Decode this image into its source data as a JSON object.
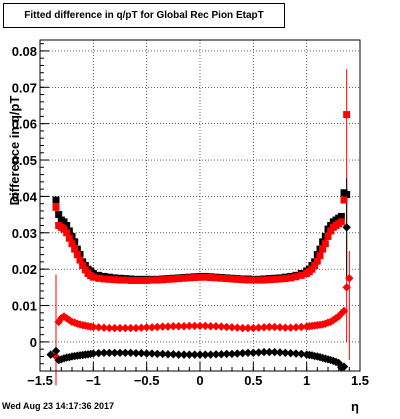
{
  "chart_data": {
    "type": "scatter",
    "title": "Fitted difference in q/pT for Global Rec Pion EtapT",
    "xlabel": "η",
    "ylabel": "Difference in q/pT",
    "xlim": [
      -1.5,
      1.5
    ],
    "ylim": [
      -0.008,
      0.083
    ],
    "grid": true,
    "legend": "none",
    "x_ticks": [
      "−1.5",
      "−1",
      "−0.5",
      "0",
      "0.5",
      "1",
      "1.5"
    ],
    "y_ticks": [
      "0",
      "0.01",
      "0.02",
      "0.03",
      "0.04",
      "0.05",
      "0.06",
      "0.07",
      "0.08"
    ],
    "series": [
      {
        "color": "#000000",
        "marker": "square",
        "points": [
          [
            -1.35,
            0.039
          ],
          [
            -1.325,
            0.035
          ],
          [
            -1.3,
            0.0335
          ],
          [
            -1.275,
            0.033
          ],
          [
            -1.25,
            0.032
          ],
          [
            -1.225,
            0.0305
          ],
          [
            -1.2,
            0.029
          ],
          [
            -1.175,
            0.0275
          ],
          [
            -1.15,
            0.0255
          ],
          [
            -1.125,
            0.024
          ],
          [
            -1.1,
            0.022
          ],
          [
            -1.075,
            0.021
          ],
          [
            -1.05,
            0.02
          ],
          [
            -1.025,
            0.0195
          ],
          [
            -1.0,
            0.0188
          ],
          [
            -0.95,
            0.0183
          ],
          [
            -0.9,
            0.018
          ],
          [
            -0.85,
            0.0178
          ],
          [
            -0.8,
            0.0176
          ],
          [
            -0.75,
            0.0175
          ],
          [
            -0.7,
            0.0174
          ],
          [
            -0.65,
            0.0173
          ],
          [
            -0.6,
            0.0172
          ],
          [
            -0.55,
            0.0172
          ],
          [
            -0.5,
            0.0172
          ],
          [
            -0.45,
            0.0172
          ],
          [
            -0.4,
            0.0172
          ],
          [
            -0.35,
            0.0173
          ],
          [
            -0.3,
            0.0174
          ],
          [
            -0.25,
            0.0175
          ],
          [
            -0.2,
            0.0176
          ],
          [
            -0.15,
            0.0177
          ],
          [
            -0.1,
            0.0178
          ],
          [
            -0.05,
            0.0179
          ],
          [
            0.0,
            0.018
          ],
          [
            0.05,
            0.018
          ],
          [
            0.1,
            0.0179
          ],
          [
            0.15,
            0.0178
          ],
          [
            0.2,
            0.0177
          ],
          [
            0.25,
            0.0176
          ],
          [
            0.3,
            0.0175
          ],
          [
            0.35,
            0.0174
          ],
          [
            0.4,
            0.0173
          ],
          [
            0.45,
            0.0173
          ],
          [
            0.5,
            0.0172
          ],
          [
            0.55,
            0.0172
          ],
          [
            0.6,
            0.0173
          ],
          [
            0.65,
            0.0174
          ],
          [
            0.7,
            0.0175
          ],
          [
            0.75,
            0.0176
          ],
          [
            0.8,
            0.0178
          ],
          [
            0.85,
            0.018
          ],
          [
            0.9,
            0.0183
          ],
          [
            0.95,
            0.0188
          ],
          [
            1.0,
            0.0195
          ],
          [
            1.025,
            0.02
          ],
          [
            1.05,
            0.021
          ],
          [
            1.075,
            0.022
          ],
          [
            1.1,
            0.024
          ],
          [
            1.125,
            0.0255
          ],
          [
            1.15,
            0.0275
          ],
          [
            1.175,
            0.029
          ],
          [
            1.2,
            0.031
          ],
          [
            1.225,
            0.032
          ],
          [
            1.25,
            0.033
          ],
          [
            1.275,
            0.0335
          ],
          [
            1.3,
            0.034
          ],
          [
            1.325,
            0.0345
          ],
          [
            1.35,
            0.041
          ],
          [
            1.375,
            0.0405
          ]
        ]
      },
      {
        "color": "#ff0000",
        "marker": "square",
        "points": [
          [
            -1.35,
            0.037
          ],
          [
            -1.325,
            0.032
          ],
          [
            -1.3,
            0.0315
          ],
          [
            -1.275,
            0.031
          ],
          [
            -1.25,
            0.03
          ],
          [
            -1.225,
            0.0285
          ],
          [
            -1.2,
            0.027
          ],
          [
            -1.175,
            0.0255
          ],
          [
            -1.15,
            0.024
          ],
          [
            -1.125,
            0.0225
          ],
          [
            -1.1,
            0.021
          ],
          [
            -1.075,
            0.0198
          ],
          [
            -1.05,
            0.0188
          ],
          [
            -1.025,
            0.0182
          ],
          [
            -1.0,
            0.0178
          ],
          [
            -0.95,
            0.0175
          ],
          [
            -0.9,
            0.0173
          ],
          [
            -0.85,
            0.0172
          ],
          [
            -0.8,
            0.0171
          ],
          [
            -0.75,
            0.017
          ],
          [
            -0.7,
            0.017
          ],
          [
            -0.65,
            0.0169
          ],
          [
            -0.6,
            0.0169
          ],
          [
            -0.55,
            0.0169
          ],
          [
            -0.5,
            0.0169
          ],
          [
            -0.45,
            0.017
          ],
          [
            -0.4,
            0.017
          ],
          [
            -0.35,
            0.0171
          ],
          [
            -0.3,
            0.0172
          ],
          [
            -0.25,
            0.0173
          ],
          [
            -0.2,
            0.0174
          ],
          [
            -0.15,
            0.0175
          ],
          [
            -0.1,
            0.0176
          ],
          [
            -0.05,
            0.0177
          ],
          [
            0.0,
            0.0178
          ],
          [
            0.05,
            0.0178
          ],
          [
            0.1,
            0.0177
          ],
          [
            0.15,
            0.0176
          ],
          [
            0.2,
            0.0175
          ],
          [
            0.25,
            0.0174
          ],
          [
            0.3,
            0.0173
          ],
          [
            0.35,
            0.0172
          ],
          [
            0.4,
            0.0171
          ],
          [
            0.45,
            0.017
          ],
          [
            0.5,
            0.017
          ],
          [
            0.55,
            0.017
          ],
          [
            0.6,
            0.017
          ],
          [
            0.65,
            0.0171
          ],
          [
            0.7,
            0.0172
          ],
          [
            0.75,
            0.0173
          ],
          [
            0.8,
            0.0174
          ],
          [
            0.85,
            0.0176
          ],
          [
            0.9,
            0.0179
          ],
          [
            0.95,
            0.0183
          ],
          [
            1.0,
            0.0188
          ],
          [
            1.025,
            0.0193
          ],
          [
            1.05,
            0.02
          ],
          [
            1.075,
            0.021
          ],
          [
            1.1,
            0.0222
          ],
          [
            1.125,
            0.0237
          ],
          [
            1.15,
            0.0255
          ],
          [
            1.175,
            0.027
          ],
          [
            1.2,
            0.029
          ],
          [
            1.225,
            0.0305
          ],
          [
            1.25,
            0.0315
          ],
          [
            1.275,
            0.032
          ],
          [
            1.3,
            0.0325
          ],
          [
            1.325,
            0.033
          ],
          [
            1.35,
            0.039
          ],
          [
            1.375,
            0.0625
          ]
        ]
      },
      {
        "color": "#ff0000",
        "marker": "diamond",
        "points": [
          [
            -1.35,
            -0.004
          ],
          [
            -1.325,
            0.0055
          ],
          [
            -1.3,
            0.0065
          ],
          [
            -1.275,
            0.007
          ],
          [
            -1.25,
            0.0065
          ],
          [
            -1.225,
            0.006
          ],
          [
            -1.2,
            0.0055
          ],
          [
            -1.175,
            0.0053
          ],
          [
            -1.15,
            0.005
          ],
          [
            -1.125,
            0.0048
          ],
          [
            -1.1,
            0.0046
          ],
          [
            -1.075,
            0.0045
          ],
          [
            -1.05,
            0.0043
          ],
          [
            -1.025,
            0.0042
          ],
          [
            -1.0,
            0.0041
          ],
          [
            -0.95,
            0.004
          ],
          [
            -0.9,
            0.0039
          ],
          [
            -0.85,
            0.0038
          ],
          [
            -0.8,
            0.0038
          ],
          [
            -0.75,
            0.0038
          ],
          [
            -0.7,
            0.0038
          ],
          [
            -0.65,
            0.0038
          ],
          [
            -0.6,
            0.0038
          ],
          [
            -0.55,
            0.0039
          ],
          [
            -0.5,
            0.004
          ],
          [
            -0.45,
            0.004
          ],
          [
            -0.4,
            0.0041
          ],
          [
            -0.35,
            0.0042
          ],
          [
            -0.3,
            0.0042
          ],
          [
            -0.25,
            0.0043
          ],
          [
            -0.2,
            0.0043
          ],
          [
            -0.15,
            0.0043
          ],
          [
            -0.1,
            0.0044
          ],
          [
            -0.05,
            0.0044
          ],
          [
            0.0,
            0.0044
          ],
          [
            0.05,
            0.0044
          ],
          [
            0.1,
            0.0043
          ],
          [
            0.15,
            0.0043
          ],
          [
            0.2,
            0.0042
          ],
          [
            0.25,
            0.0041
          ],
          [
            0.3,
            0.004
          ],
          [
            0.35,
            0.0039
          ],
          [
            0.4,
            0.0038
          ],
          [
            0.45,
            0.0038
          ],
          [
            0.5,
            0.0038
          ],
          [
            0.55,
            0.0039
          ],
          [
            0.6,
            0.004
          ],
          [
            0.65,
            0.0041
          ],
          [
            0.7,
            0.0041
          ],
          [
            0.75,
            0.004
          ],
          [
            0.8,
            0.0039
          ],
          [
            0.85,
            0.0039
          ],
          [
            0.9,
            0.004
          ],
          [
            0.95,
            0.0041
          ],
          [
            1.0,
            0.0042
          ],
          [
            1.025,
            0.0043
          ],
          [
            1.05,
            0.0044
          ],
          [
            1.075,
            0.0045
          ],
          [
            1.1,
            0.0046
          ],
          [
            1.125,
            0.0047
          ],
          [
            1.15,
            0.0048
          ],
          [
            1.175,
            0.005
          ],
          [
            1.2,
            0.0053
          ],
          [
            1.225,
            0.0055
          ],
          [
            1.25,
            0.006
          ],
          [
            1.275,
            0.0065
          ],
          [
            1.3,
            0.007
          ],
          [
            1.325,
            0.0078
          ],
          [
            1.35,
            0.0085
          ],
          [
            1.375,
            0.015
          ],
          [
            1.4,
            0.0175
          ]
        ]
      },
      {
        "color": "#000000",
        "marker": "diamond",
        "points": [
          [
            -1.4,
            -0.0035
          ],
          [
            -1.35,
            -0.0025
          ],
          [
            -1.325,
            -0.005
          ],
          [
            -1.3,
            -0.0048
          ],
          [
            -1.275,
            -0.0045
          ],
          [
            -1.25,
            -0.0043
          ],
          [
            -1.225,
            -0.0042
          ],
          [
            -1.2,
            -0.004
          ],
          [
            -1.175,
            -0.0039
          ],
          [
            -1.15,
            -0.0038
          ],
          [
            -1.125,
            -0.0037
          ],
          [
            -1.1,
            -0.0036
          ],
          [
            -1.075,
            -0.0035
          ],
          [
            -1.05,
            -0.0034
          ],
          [
            -1.025,
            -0.0033
          ],
          [
            -1.0,
            -0.0032
          ],
          [
            -0.95,
            -0.0031
          ],
          [
            -0.9,
            -0.003
          ],
          [
            -0.85,
            -0.003
          ],
          [
            -0.8,
            -0.003
          ],
          [
            -0.75,
            -0.003
          ],
          [
            -0.7,
            -0.003
          ],
          [
            -0.65,
            -0.003
          ],
          [
            -0.6,
            -0.0031
          ],
          [
            -0.55,
            -0.0031
          ],
          [
            -0.5,
            -0.0032
          ],
          [
            -0.45,
            -0.0032
          ],
          [
            -0.4,
            -0.0033
          ],
          [
            -0.35,
            -0.0033
          ],
          [
            -0.3,
            -0.0034
          ],
          [
            -0.25,
            -0.0034
          ],
          [
            -0.2,
            -0.0035
          ],
          [
            -0.15,
            -0.0035
          ],
          [
            -0.1,
            -0.0035
          ],
          [
            -0.05,
            -0.0035
          ],
          [
            0.0,
            -0.0035
          ],
          [
            0.05,
            -0.0035
          ],
          [
            0.1,
            -0.0035
          ],
          [
            0.15,
            -0.0034
          ],
          [
            0.2,
            -0.0034
          ],
          [
            0.25,
            -0.0033
          ],
          [
            0.3,
            -0.0033
          ],
          [
            0.35,
            -0.0032
          ],
          [
            0.4,
            -0.0031
          ],
          [
            0.45,
            -0.003
          ],
          [
            0.5,
            -0.003
          ],
          [
            0.55,
            -0.0029
          ],
          [
            0.6,
            -0.0028
          ],
          [
            0.65,
            -0.0028
          ],
          [
            0.7,
            -0.0028
          ],
          [
            0.75,
            -0.0029
          ],
          [
            0.8,
            -0.003
          ],
          [
            0.85,
            -0.0031
          ],
          [
            0.9,
            -0.0032
          ],
          [
            0.95,
            -0.0033
          ],
          [
            1.0,
            -0.0035
          ],
          [
            1.025,
            -0.0036
          ],
          [
            1.05,
            -0.0037
          ],
          [
            1.075,
            -0.0039
          ],
          [
            1.1,
            -0.004
          ],
          [
            1.125,
            -0.0042
          ],
          [
            1.15,
            -0.0044
          ],
          [
            1.175,
            -0.0046
          ],
          [
            1.2,
            -0.0048
          ],
          [
            1.225,
            -0.005
          ],
          [
            1.25,
            -0.0052
          ],
          [
            1.275,
            -0.0055
          ],
          [
            1.3,
            -0.0058
          ],
          [
            1.325,
            -0.007
          ],
          [
            1.35,
            -0.0068
          ],
          [
            1.375,
            0.0315
          ]
        ]
      }
    ],
    "error_bars": [
      {
        "x": -1.35,
        "y": -0.004,
        "lo": -0.012,
        "hi": 0.0185,
        "color": "#ff0000"
      },
      {
        "x": -1.35,
        "y": 0.037,
        "lo": 0.035,
        "hi": 0.04,
        "color": "#ff0000"
      },
      {
        "x": 1.375,
        "y": 0.0625,
        "lo": 0.0,
        "hi": 0.075,
        "color": "#ff0000"
      },
      {
        "x": 1.4,
        "y": 0.0175,
        "lo": -0.005,
        "hi": 0.025,
        "color": "#ff0000"
      },
      {
        "x": 1.375,
        "y": 0.0315,
        "lo": 0.018,
        "hi": 0.045,
        "color": "#000000"
      },
      {
        "x": 1.375,
        "y": 0.0405,
        "lo": 0.038,
        "hi": 0.042,
        "color": "#000000"
      }
    ]
  },
  "footer": {
    "timestamp": "Wed Aug 23 14:17:36 2017"
  }
}
